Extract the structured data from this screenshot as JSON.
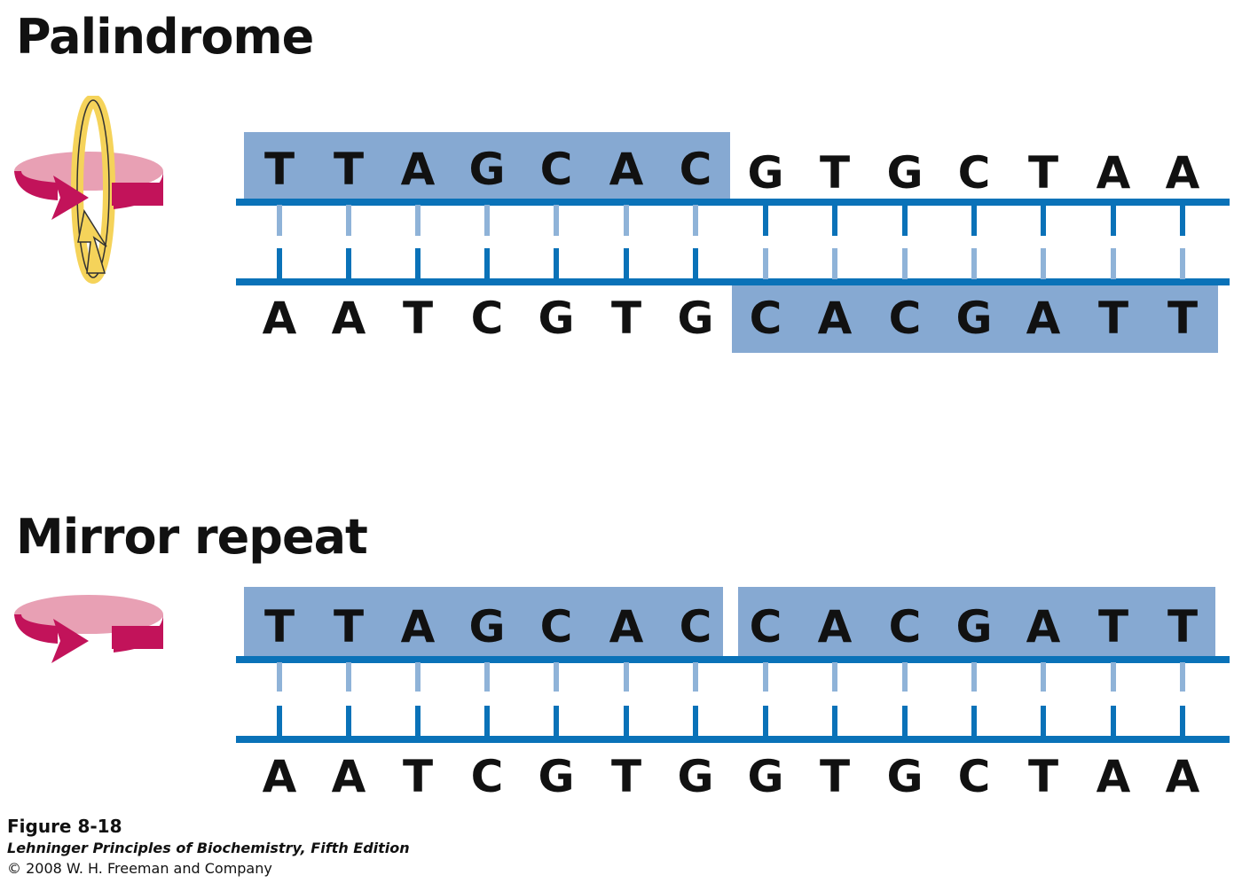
{
  "palindrome": {
    "title": "Palindrome",
    "top_strand": [
      "T",
      "T",
      "A",
      "G",
      "C",
      "A",
      "C",
      "G",
      "T",
      "G",
      "C",
      "T",
      "A",
      "A"
    ],
    "bottom_strand": [
      "A",
      "A",
      "T",
      "C",
      "G",
      "T",
      "G",
      "C",
      "A",
      "C",
      "G",
      "A",
      "T",
      "T"
    ]
  },
  "mirror_repeat": {
    "title": "Mirror repeat",
    "top_strand": [
      "T",
      "T",
      "A",
      "G",
      "C",
      "A",
      "C",
      "C",
      "A",
      "C",
      "G",
      "A",
      "T",
      "T"
    ],
    "bottom_strand": [
      "A",
      "A",
      "T",
      "C",
      "G",
      "T",
      "G",
      "G",
      "T",
      "G",
      "C",
      "T",
      "A",
      "A"
    ]
  },
  "caption": {
    "figure": "Figure 8-18",
    "book": "Lehninger Principles of Biochemistry, Fifth Edition",
    "copyright": "© 2008 W. H. Freeman and Company"
  },
  "colors": {
    "highlight_box": "#86a9d2",
    "backbone": "#0a72b8",
    "pair_light": "#8fb3d8",
    "arrow_pink": "#e8a0b4",
    "arrow_magenta": "#c2135a",
    "arrow_yellow": "#f5d35a"
  },
  "icons": [
    "rotation-180-icon",
    "mirror-rotation-icon"
  ]
}
